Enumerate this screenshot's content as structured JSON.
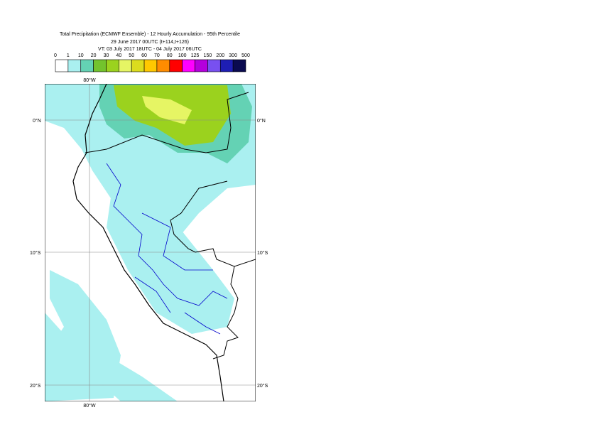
{
  "header": {
    "title_lines": [
      "Total Precipitation (ECMWF Ensemble) - 12 Hourly Accumulation - 95th Percentile",
      "29 June 2017 00UTC (t+114,t+126)",
      "VT: 03 July 2017 18UTC - 04 July 2017 06UTC"
    ]
  },
  "legend": {
    "labels": [
      0,
      1,
      10,
      20,
      30,
      40,
      50,
      60,
      70,
      80,
      100,
      125,
      150,
      200,
      300,
      500
    ],
    "colors": [
      "#ffffff",
      "#aaf0f0",
      "#64d2b4",
      "#73c32d",
      "#9bd21e",
      "#e6f564",
      "#dcdc1e",
      "#ffc800",
      "#ff8c00",
      "#ff0000",
      "#ff00ff",
      "#b400dc",
      "#7850f0",
      "#1e1eb4",
      "#0a0a50"
    ]
  },
  "map": {
    "lat_labels": [
      "0°N",
      "10°S",
      "20°S"
    ],
    "lon_label": "80°W"
  }
}
